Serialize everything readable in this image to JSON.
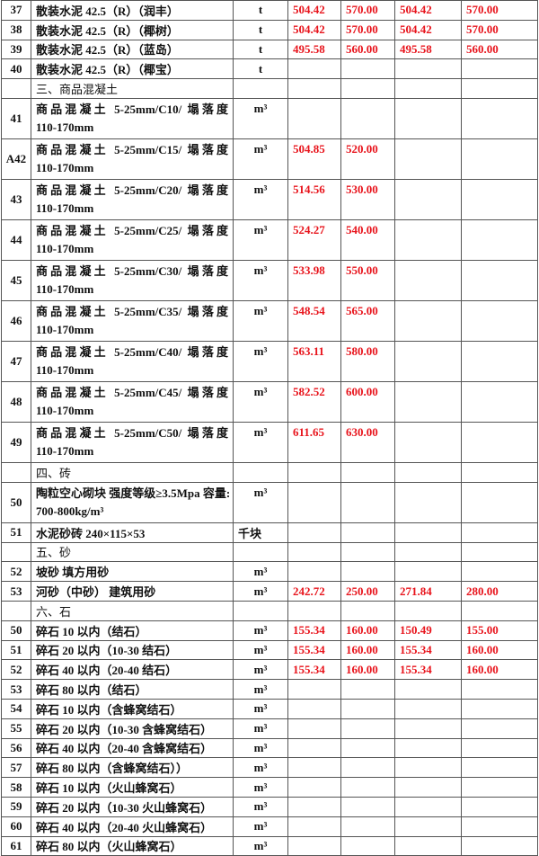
{
  "rows": [
    {
      "no": "37",
      "name": "散装水泥 42.5（R）（润丰）",
      "unit": "t",
      "v": [
        "504.42",
        "570.00",
        "504.42",
        "570.00"
      ]
    },
    {
      "no": "38",
      "name": "散装水泥 42.5（R）（椰树）",
      "unit": "t",
      "v": [
        "504.42",
        "570.00",
        "504.42",
        "570.00"
      ]
    },
    {
      "no": "39",
      "name": "散装水泥 42.5（R）（蓝岛）",
      "unit": "t",
      "v": [
        "495.58",
        "560.00",
        "495.58",
        "560.00"
      ]
    },
    {
      "no": "40",
      "name": "散装水泥 42.5（R）（椰宝）",
      "unit": "t",
      "v": [
        "",
        "",
        "",
        ""
      ]
    },
    {
      "no": "",
      "name": "三、商品混凝土",
      "unit": "",
      "v": [
        "",
        "",
        "",
        ""
      ],
      "section": true
    },
    {
      "no": "41",
      "name": "商品混凝土 5-25mm/C10/ 塌落度",
      "name2": "110-170mm",
      "unit": "m³",
      "v": [
        "",
        "",
        "",
        ""
      ]
    },
    {
      "no": "A42",
      "name": "商品混凝土 5-25mm/C15/ 塌落度",
      "name2": "110-170mm",
      "unit": "m³",
      "v": [
        "504.85",
        "520.00",
        "",
        ""
      ]
    },
    {
      "no": "43",
      "name": "商品混凝土 5-25mm/C20/ 塌落度",
      "name2": "110-170mm",
      "unit": "m³",
      "v": [
        "514.56",
        "530.00",
        "",
        ""
      ]
    },
    {
      "no": "44",
      "name": "商品混凝土 5-25mm/C25/ 塌落度",
      "name2": "110-170mm",
      "unit": "m³",
      "v": [
        "524.27",
        "540.00",
        "",
        ""
      ]
    },
    {
      "no": "45",
      "name": "商品混凝土 5-25mm/C30/ 塌落度",
      "name2": "110-170mm",
      "unit": "m³",
      "v": [
        "533.98",
        "550.00",
        "",
        ""
      ]
    },
    {
      "no": "46",
      "name": "商品混凝土 5-25mm/C35/ 塌落度",
      "name2": "110-170mm",
      "unit": "m³",
      "v": [
        "548.54",
        "565.00",
        "",
        ""
      ]
    },
    {
      "no": "47",
      "name": "商品混凝土 5-25mm/C40/ 塌落度",
      "name2": "110-170mm",
      "unit": "m³",
      "v": [
        "563.11",
        "580.00",
        "",
        ""
      ]
    },
    {
      "no": "48",
      "name": "商品混凝土 5-25mm/C45/ 塌落度",
      "name2": "110-170mm",
      "unit": "m³",
      "v": [
        "582.52",
        "600.00",
        "",
        ""
      ]
    },
    {
      "no": "49",
      "name": "商品混凝土 5-25mm/C50/ 塌落度",
      "name2": "110-170mm",
      "unit": "m³",
      "v": [
        "611.65",
        "630.00",
        "",
        ""
      ]
    },
    {
      "no": "",
      "name": "四、砖",
      "unit": "",
      "v": [
        "",
        "",
        "",
        ""
      ],
      "section": true
    },
    {
      "no": "50",
      "name": "陶粒空心砌块 强度等级≥3.5Mpa 容量:",
      "name2": "700-800kg/m³",
      "unit": "m³",
      "v": [
        "",
        "",
        "",
        ""
      ]
    },
    {
      "no": "51",
      "name": "水泥砂砖 240×115×53",
      "unit": "千块",
      "v": [
        "",
        "",
        "",
        ""
      ]
    },
    {
      "no": "",
      "name": "五、砂",
      "unit": "",
      "v": [
        "",
        "",
        "",
        ""
      ],
      "section": true
    },
    {
      "no": "52",
      "name": "坡砂 填方用砂",
      "unit": "m³",
      "v": [
        "",
        "",
        "",
        ""
      ]
    },
    {
      "no": "53",
      "name": "河砂（中砂） 建筑用砂",
      "unit": "m³",
      "v": [
        "242.72",
        "250.00",
        "271.84",
        "280.00"
      ]
    },
    {
      "no": "",
      "name": "六、石",
      "unit": "",
      "v": [
        "",
        "",
        "",
        ""
      ],
      "section": true
    },
    {
      "no": "50",
      "name": "碎石 10 以内（结石）",
      "unit": "m³",
      "v": [
        "155.34",
        "160.00",
        "150.49",
        "155.00"
      ]
    },
    {
      "no": "51",
      "name": "碎石 20 以内（10-30 结石）",
      "unit": "m³",
      "v": [
        "155.34",
        "160.00",
        "155.34",
        "160.00"
      ]
    },
    {
      "no": "52",
      "name": "碎石 40 以内（20-40 结石）",
      "unit": "m³",
      "v": [
        "155.34",
        "160.00",
        "155.34",
        "160.00"
      ]
    },
    {
      "no": "53",
      "name": "碎石 80 以内（结石）",
      "unit": "m³",
      "v": [
        "",
        "",
        "",
        ""
      ]
    },
    {
      "no": "54",
      "name": "碎石 10 以内（含蜂窝结石）",
      "unit": "m³",
      "v": [
        "",
        "",
        "",
        ""
      ]
    },
    {
      "no": "55",
      "name": "碎石 20 以内（10-30 含蜂窝结石）",
      "unit": "m³",
      "v": [
        "",
        "",
        "",
        ""
      ]
    },
    {
      "no": "56",
      "name": "碎石 40 以内（20-40 含蜂窝结石）",
      "unit": "m³",
      "v": [
        "",
        "",
        "",
        ""
      ]
    },
    {
      "no": "57",
      "name": "碎石 80 以内（含蜂窝结石））",
      "unit": "m³",
      "v": [
        "",
        "",
        "",
        ""
      ]
    },
    {
      "no": "58",
      "name": "碎石 10 以内（火山蜂窝石）",
      "unit": "m³",
      "v": [
        "",
        "",
        "",
        ""
      ]
    },
    {
      "no": "59",
      "name": "碎石 20 以内（10-30 火山蜂窝石）",
      "unit": "m³",
      "v": [
        "",
        "",
        "",
        ""
      ]
    },
    {
      "no": "60",
      "name": "碎石 40 以内（20-40 火山蜂窝石）",
      "unit": "m³",
      "v": [
        "",
        "",
        "",
        ""
      ]
    },
    {
      "no": "61",
      "name": "碎石 80 以内（火山蜂窝石）",
      "unit": "m³",
      "v": [
        "",
        "",
        "",
        ""
      ]
    }
  ],
  "colors": {
    "price": "#e8141c",
    "border": "#555555"
  }
}
